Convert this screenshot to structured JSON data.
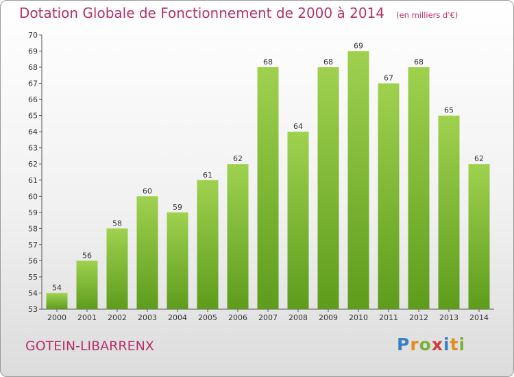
{
  "title": "Dotation Globale de Fonctionnement de 2000 à 2014",
  "unit_note": "(en milliers d'€)",
  "city": "GOTEIN-LIBARRENX",
  "logo": {
    "text": "Proxiti",
    "letters": [
      {
        "ch": "P",
        "color": "#3a7fc4"
      },
      {
        "ch": "r",
        "color": "#e48a1e"
      },
      {
        "ch": "o",
        "color": "#7ab03b"
      },
      {
        "ch": "x",
        "color": "#d13c3c"
      },
      {
        "ch": "i",
        "color": "#3a7fc4"
      },
      {
        "ch": "t",
        "color": "#e48a1e"
      },
      {
        "ch": "i",
        "color": "#7ab03b"
      }
    ]
  },
  "colors": {
    "bar_top": "#9fd14f",
    "bar_bottom": "#5e9c1c",
    "accent": "#b5306b"
  },
  "chart_data": {
    "type": "bar",
    "categories": [
      "2000",
      "2001",
      "2002",
      "2003",
      "2004",
      "2005",
      "2006",
      "2007",
      "2008",
      "2009",
      "2010",
      "2011",
      "2012",
      "2013",
      "2014"
    ],
    "values": [
      54,
      56,
      58,
      60,
      59,
      61,
      62,
      68,
      64,
      68,
      69,
      67,
      68,
      65,
      62
    ],
    "ylim": [
      53,
      70
    ],
    "yticks": [
      53,
      54,
      55,
      56,
      57,
      58,
      59,
      60,
      61,
      62,
      63,
      64,
      65,
      66,
      67,
      68,
      69,
      70
    ],
    "grid": false,
    "xlabel": "",
    "ylabel": ""
  }
}
